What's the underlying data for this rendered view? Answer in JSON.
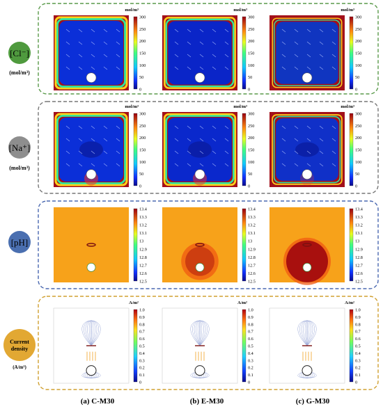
{
  "rows": [
    {
      "id": "cl",
      "label": "[Cl⁻]",
      "sublabel": "(mol/m³)",
      "kind": "conc",
      "unit": "mol/m³",
      "ticks": [
        "300",
        "250",
        "200",
        "150",
        "100",
        "50",
        "0"
      ],
      "frame_color": "#5a9a4a",
      "badge_color": "#4f9a3e",
      "panels": [
        {
          "core": "#0b2fd8",
          "glow": 1.0,
          "blob": 0,
          "arrows": true
        },
        {
          "core": "#0a25c8",
          "glow": 0.8,
          "blob": 0,
          "arrows": true
        },
        {
          "core": "#1035c0",
          "glow": 0.35,
          "blob": 0,
          "arrows": true
        }
      ]
    },
    {
      "id": "na",
      "label": "[Na⁺]",
      "sublabel": "(mol/m³)",
      "kind": "conc",
      "unit": "mol/m³",
      "ticks": [
        "300",
        "250",
        "200",
        "150",
        "100",
        "50",
        "0"
      ],
      "frame_color": "#777777",
      "badge_color": "#8e8e8e",
      "panels": [
        {
          "core": "#0b2fd8",
          "glow": 1.0,
          "blob": 0.6,
          "arrows": true
        },
        {
          "core": "#0a28cc",
          "glow": 0.9,
          "blob": 0.6,
          "arrows": true
        },
        {
          "core": "#1030c8",
          "glow": 0.45,
          "blob": 0.5,
          "arrows": true
        }
      ]
    },
    {
      "id": "ph",
      "label": "[pH]",
      "sublabel": "",
      "kind": "ph",
      "unit": "",
      "ticks": [
        "13.4",
        "13.3",
        "13.2",
        "13.1",
        "13",
        "12.9",
        "12.8",
        "12.7",
        "12.6",
        "12.5"
      ],
      "frame_color": "#4a68b0",
      "badge_color": "#4a6fb0",
      "panels": [
        {
          "core": "#f7a21a",
          "glow": 0,
          "blob": 0,
          "arrows": false
        },
        {
          "core": "#f7a21a",
          "glow": 0,
          "blob": 0.55,
          "arrows": false
        },
        {
          "core": "#f7a21a",
          "glow": 0,
          "blob": 1.0,
          "arrows": false
        }
      ]
    },
    {
      "id": "cd",
      "label": "Current",
      "label2": "density",
      "sublabel": "(A/m²)",
      "kind": "cd",
      "unit": "A/m²",
      "ticks": [
        "1.0",
        "0.9",
        "0.8",
        "0.7",
        "0.6",
        "0.5",
        "0.4",
        "0.3",
        "0.2",
        "0.1",
        "0"
      ],
      "frame_color": "#d0a030",
      "badge_color": "#e2a833",
      "panels": [
        {
          "core": "#ffffff",
          "glow": 0,
          "blob": 0,
          "arrows": true
        },
        {
          "core": "#ffffff",
          "glow": 0,
          "blob": 0,
          "arrows": true
        },
        {
          "core": "#ffffff",
          "glow": 0,
          "blob": 0,
          "arrows": true
        }
      ]
    }
  ],
  "columns": [
    "(a) C-M30",
    "(b) E-M30",
    "(c) G-M30"
  ]
}
